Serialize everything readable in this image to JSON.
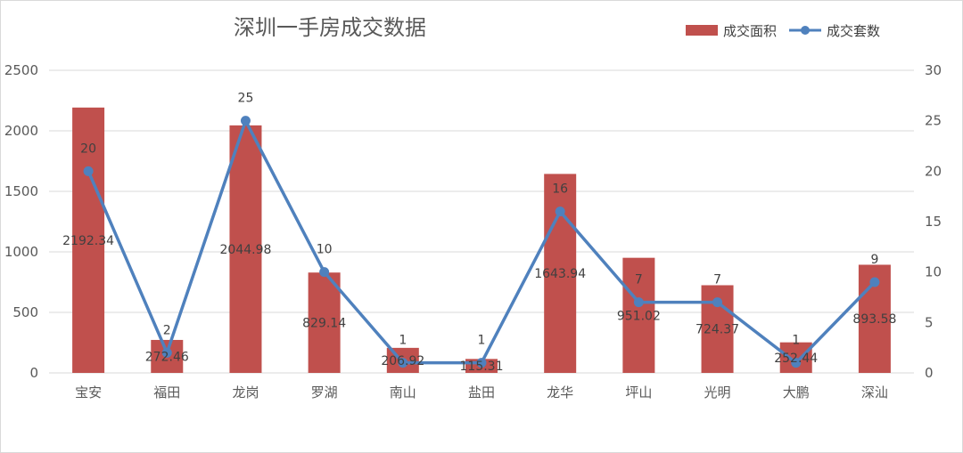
{
  "chart_data": {
    "type": "bar",
    "title": "深圳一手房成交数据",
    "categories": [
      "宝安",
      "福田",
      "龙岗",
      "罗湖",
      "南山",
      "盐田",
      "龙华",
      "坪山",
      "光明",
      "大鹏",
      "深汕"
    ],
    "series": [
      {
        "name": "成交面积",
        "type": "bar",
        "axis": "left",
        "color": "#c0504d",
        "values": [
          2192.34,
          272.46,
          2044.98,
          829.14,
          206.92,
          115.31,
          1643.94,
          951.02,
          724.37,
          252.44,
          893.58
        ],
        "labels": [
          "2192.34",
          "272.46",
          "2044.98",
          "829.14",
          "206.92",
          "115.31",
          "1643.94",
          "951.02",
          "724.37",
          "252.44",
          "893.58"
        ]
      },
      {
        "name": "成交套数",
        "type": "line",
        "axis": "right",
        "color": "#4f81bd",
        "values": [
          20,
          2,
          25,
          10,
          1,
          1,
          16,
          7,
          7,
          1,
          9
        ],
        "labels": [
          "20",
          "2",
          "25",
          "10",
          "1",
          "1",
          "16",
          "7",
          "7",
          "1",
          "9"
        ]
      }
    ],
    "y_left": {
      "ylim": [
        0,
        2500
      ],
      "ticks": [
        "0",
        "500",
        "1000",
        "1500",
        "2000",
        "2500"
      ]
    },
    "y_right": {
      "ylim": [
        0,
        30
      ],
      "ticks": [
        "0",
        "5",
        "10",
        "15",
        "20",
        "25",
        "30"
      ]
    },
    "xlabel": "",
    "ylabel": "",
    "grid": true,
    "legend_position": "top-right"
  }
}
